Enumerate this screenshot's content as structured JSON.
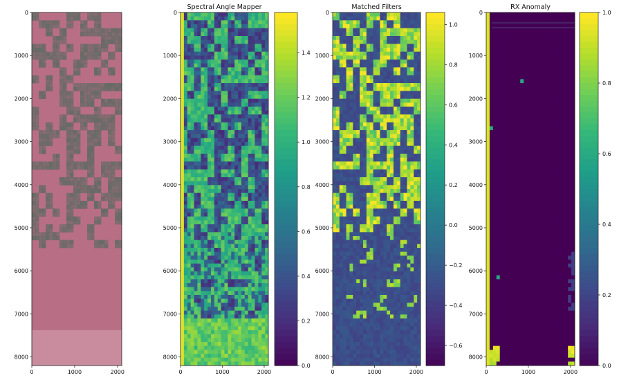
{
  "chart_data": [
    {
      "type": "heatmap",
      "panel": "rgb-composite",
      "title": "",
      "colormap": "false-color",
      "colors": {
        "base": "#b86f86",
        "fields": "#5f6a63"
      },
      "xlim": [
        0,
        2100
      ],
      "ylim": [
        8200,
        0
      ],
      "x_ticks": [
        "0",
        "1000",
        "2000"
      ],
      "y_ticks": [
        "0",
        "1000",
        "2000",
        "3000",
        "4000",
        "5000",
        "6000",
        "7000",
        "8000"
      ],
      "colorbar": null
    },
    {
      "type": "heatmap",
      "panel": "spectral-angle-mapper",
      "title": "Spectral Angle Mapper",
      "colormap": "viridis",
      "xlim": [
        0,
        2100
      ],
      "ylim": [
        8200,
        0
      ],
      "x_ticks": [
        "0",
        "1000",
        "2000"
      ],
      "y_ticks": [
        "0",
        "1000",
        "2000",
        "3000",
        "4000",
        "5000",
        "6000",
        "7000",
        "8000"
      ],
      "colorbar": {
        "range": [
          0.0,
          1.58
        ],
        "ticks": [
          "0.0",
          "0.2",
          "0.4",
          "0.6",
          "0.8",
          "1.0",
          "1.2",
          "1.4"
        ]
      }
    },
    {
      "type": "heatmap",
      "panel": "matched-filters",
      "title": "Matched Filters",
      "colormap": "viridis",
      "xlim": [
        0,
        2100
      ],
      "ylim": [
        8200,
        0
      ],
      "x_ticks": [
        "0",
        "1000",
        "2000"
      ],
      "y_ticks": [
        "0",
        "1000",
        "2000",
        "3000",
        "4000",
        "5000",
        "6000",
        "7000",
        "8000"
      ],
      "colorbar": {
        "range": [
          -0.7,
          1.06
        ],
        "ticks": [
          "−0.6",
          "−0.4",
          "−0.2",
          "0.0",
          "0.2",
          "0.4",
          "0.6",
          "0.8",
          "1.0"
        ]
      }
    },
    {
      "type": "heatmap",
      "panel": "rx-anomaly",
      "title": "RX Anomaly",
      "colormap": "viridis",
      "xlim": [
        0,
        2100
      ],
      "ylim": [
        8200,
        0
      ],
      "x_ticks": [
        "0",
        "1000",
        "2000"
      ],
      "y_ticks": [
        "0",
        "1000",
        "2000",
        "3000",
        "4000",
        "5000",
        "6000",
        "7000",
        "8000"
      ],
      "colorbar": {
        "range": [
          0.0,
          1.0
        ],
        "ticks": [
          "0.0",
          "0.2",
          "0.4",
          "0.6",
          "0.8",
          "1.0"
        ]
      }
    }
  ]
}
